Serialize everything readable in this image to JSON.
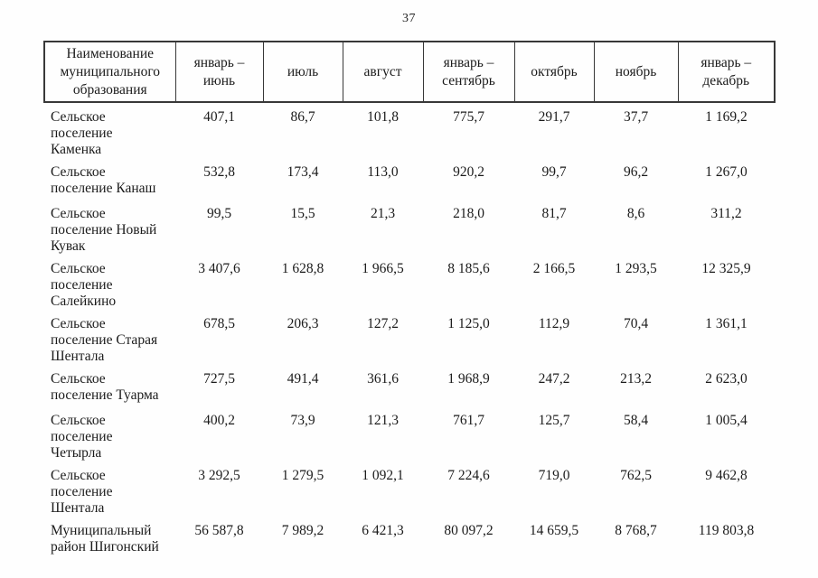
{
  "page": {
    "number": "37"
  },
  "table": {
    "columns": [
      "Наименование муниципального образования",
      "январь – июнь",
      "июль",
      "август",
      "январь – сентябрь",
      "октябрь",
      "ноябрь",
      "январь – декабрь"
    ],
    "rows": [
      {
        "name": "Сельское поселение Каменка",
        "values": [
          "407,1",
          "86,7",
          "101,8",
          "775,7",
          "291,7",
          "37,7",
          "1 169,2"
        ]
      },
      {
        "name": "Сельское поселение Канаш",
        "values": [
          "532,8",
          "173,4",
          "113,0",
          "920,2",
          "99,7",
          "96,2",
          "1 267,0"
        ]
      },
      {
        "name": "Сельское поселение Новый Кувак",
        "values": [
          "99,5",
          "15,5",
          "21,3",
          "218,0",
          "81,7",
          "8,6",
          "311,2"
        ]
      },
      {
        "name": "Сельское поселение Салейкино",
        "values": [
          "3 407,6",
          "1 628,8",
          "1 966,5",
          "8 185,6",
          "2 166,5",
          "1 293,5",
          "12 325,9"
        ]
      },
      {
        "name": "Сельское поселение Старая Шентала",
        "values": [
          "678,5",
          "206,3",
          "127,2",
          "1 125,0",
          "112,9",
          "70,4",
          "1 361,1"
        ]
      },
      {
        "name": "Сельское поселение Туарма",
        "values": [
          "727,5",
          "491,4",
          "361,6",
          "1 968,9",
          "247,2",
          "213,2",
          "2 623,0"
        ]
      },
      {
        "name": "Сельское поселение Четырла",
        "values": [
          "400,2",
          "73,9",
          "121,3",
          "761,7",
          "125,7",
          "58,4",
          "1 005,4"
        ]
      },
      {
        "name": "Сельское поселение Шентала",
        "values": [
          "3 292,5",
          "1 279,5",
          "1 092,1",
          "7 224,6",
          "719,0",
          "762,5",
          "9 462,8"
        ]
      },
      {
        "name": "Муниципальный район Шигонский",
        "values": [
          "56 587,8",
          "7 989,2",
          "6 421,3",
          "80 097,2",
          "14 659,5",
          "8 768,7",
          "119 803,8"
        ]
      }
    ]
  }
}
